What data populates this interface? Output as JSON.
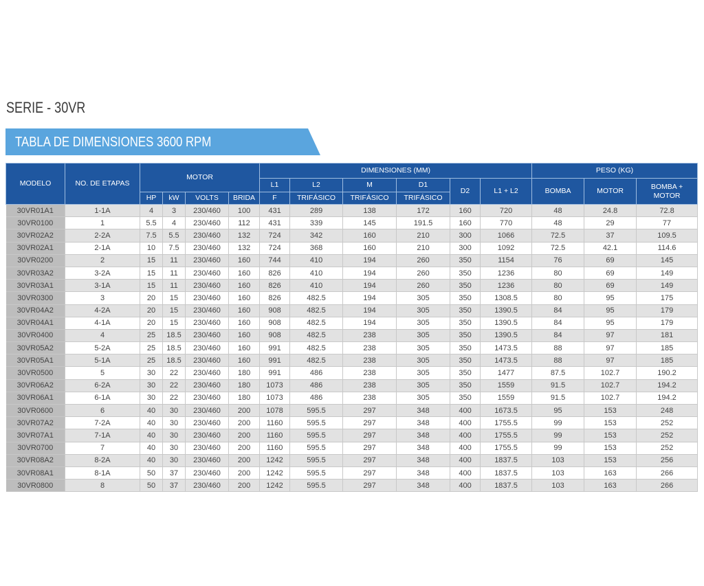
{
  "serie_title": "SERIE - 30VR",
  "banner_title": "TABLA DE DIMENSIONES 3600 RPM",
  "headers": {
    "modelo": "MODELO",
    "etapas": "NO. DE ETAPAS",
    "motor": "MOTOR",
    "dimensiones": "DIMENSIONES (MM)",
    "peso": "PESO (KG)",
    "l1": "L1",
    "l2": "L2",
    "m": "M",
    "d1": "D1",
    "d2": "D2",
    "l1l2": "L1 + L2",
    "bomba": "BOMBA",
    "motor_peso": "MOTOR",
    "bomba_motor": "BOMBA + MOTOR",
    "hp": "HP",
    "kw": "kW",
    "volts": "VOLTS",
    "brida": "BRIDA",
    "f": "F",
    "trifasico_l2": "TRIFÁSICO",
    "trifasico_m": "TRIFÁSICO",
    "trifasico_d1": "TRIFÁSICO"
  },
  "rows": [
    [
      "30VR01A1",
      "1-1A",
      "4",
      "3",
      "230/460",
      "100",
      "431",
      "289",
      "138",
      "172",
      "160",
      "720",
      "48",
      "24.8",
      "72.8"
    ],
    [
      "30VR0100",
      "1",
      "5.5",
      "4",
      "230/460",
      "112",
      "431",
      "339",
      "145",
      "191.5",
      "160",
      "770",
      "48",
      "29",
      "77"
    ],
    [
      "30VR02A2",
      "2-2A",
      "7.5",
      "5.5",
      "230/460",
      "132",
      "724",
      "342",
      "160",
      "210",
      "300",
      "1066",
      "72.5",
      "37",
      "109.5"
    ],
    [
      "30VR02A1",
      "2-1A",
      "10",
      "7.5",
      "230/460",
      "132",
      "724",
      "368",
      "160",
      "210",
      "300",
      "1092",
      "72.5",
      "42.1",
      "114.6"
    ],
    [
      "30VR0200",
      "2",
      "15",
      "11",
      "230/460",
      "160",
      "744",
      "410",
      "194",
      "260",
      "350",
      "1154",
      "76",
      "69",
      "145"
    ],
    [
      "30VR03A2",
      "3-2A",
      "15",
      "11",
      "230/460",
      "160",
      "826",
      "410",
      "194",
      "260",
      "350",
      "1236",
      "80",
      "69",
      "149"
    ],
    [
      "30VR03A1",
      "3-1A",
      "15",
      "11",
      "230/460",
      "160",
      "826",
      "410",
      "194",
      "260",
      "350",
      "1236",
      "80",
      "69",
      "149"
    ],
    [
      "30VR0300",
      "3",
      "20",
      "15",
      "230/460",
      "160",
      "826",
      "482.5",
      "194",
      "305",
      "350",
      "1308.5",
      "80",
      "95",
      "175"
    ],
    [
      "30VR04A2",
      "4-2A",
      "20",
      "15",
      "230/460",
      "160",
      "908",
      "482.5",
      "194",
      "305",
      "350",
      "1390.5",
      "84",
      "95",
      "179"
    ],
    [
      "30VR04A1",
      "4-1A",
      "20",
      "15",
      "230/460",
      "160",
      "908",
      "482.5",
      "194",
      "305",
      "350",
      "1390.5",
      "84",
      "95",
      "179"
    ],
    [
      "30VR0400",
      "4",
      "25",
      "18.5",
      "230/460",
      "160",
      "908",
      "482.5",
      "238",
      "305",
      "350",
      "1390.5",
      "84",
      "97",
      "181"
    ],
    [
      "30VR05A2",
      "5-2A",
      "25",
      "18.5",
      "230/460",
      "160",
      "991",
      "482.5",
      "238",
      "305",
      "350",
      "1473.5",
      "88",
      "97",
      "185"
    ],
    [
      "30VR05A1",
      "5-1A",
      "25",
      "18.5",
      "230/460",
      "160",
      "991",
      "482.5",
      "238",
      "305",
      "350",
      "1473.5",
      "88",
      "97",
      "185"
    ],
    [
      "30VR0500",
      "5",
      "30",
      "22",
      "230/460",
      "180",
      "991",
      "486",
      "238",
      "305",
      "350",
      "1477",
      "87.5",
      "102.7",
      "190.2"
    ],
    [
      "30VR06A2",
      "6-2A",
      "30",
      "22",
      "230/460",
      "180",
      "1073",
      "486",
      "238",
      "305",
      "350",
      "1559",
      "91.5",
      "102.7",
      "194.2"
    ],
    [
      "30VR06A1",
      "6-1A",
      "30",
      "22",
      "230/460",
      "180",
      "1073",
      "486",
      "238",
      "305",
      "350",
      "1559",
      "91.5",
      "102.7",
      "194.2"
    ],
    [
      "30VR0600",
      "6",
      "40",
      "30",
      "230/460",
      "200",
      "1078",
      "595.5",
      "297",
      "348",
      "400",
      "1673.5",
      "95",
      "153",
      "248"
    ],
    [
      "30VR07A2",
      "7-2A",
      "40",
      "30",
      "230/460",
      "200",
      "1160",
      "595.5",
      "297",
      "348",
      "400",
      "1755.5",
      "99",
      "153",
      "252"
    ],
    [
      "30VR07A1",
      "7-1A",
      "40",
      "30",
      "230/460",
      "200",
      "1160",
      "595.5",
      "297",
      "348",
      "400",
      "1755.5",
      "99",
      "153",
      "252"
    ],
    [
      "30VR0700",
      "7",
      "40",
      "30",
      "230/460",
      "200",
      "1160",
      "595.5",
      "297",
      "348",
      "400",
      "1755.5",
      "99",
      "153",
      "252"
    ],
    [
      "30VR08A2",
      "8-2A",
      "40",
      "30",
      "230/460",
      "200",
      "1242",
      "595.5",
      "297",
      "348",
      "400",
      "1837.5",
      "103",
      "153",
      "256"
    ],
    [
      "30VR08A1",
      "8-1A",
      "50",
      "37",
      "230/460",
      "200",
      "1242",
      "595.5",
      "297",
      "348",
      "400",
      "1837.5",
      "103",
      "163",
      "266"
    ],
    [
      "30VR0800",
      "8",
      "50",
      "37",
      "230/460",
      "200",
      "1242",
      "595.5",
      "297",
      "348",
      "400",
      "1837.5",
      "103",
      "163",
      "266"
    ]
  ]
}
